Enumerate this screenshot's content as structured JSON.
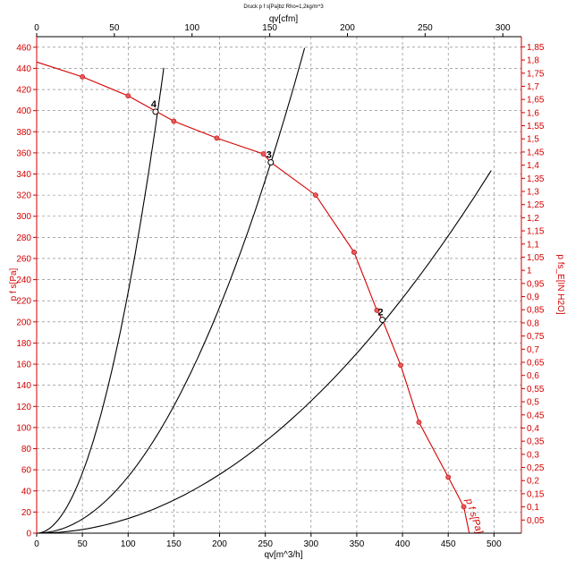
{
  "chart_data": {
    "type": "line",
    "title": "Druck p f s[Pa]bz Rho=1,2kg/m^3",
    "xlabel": "qv[m^3/h]",
    "xlabel_top": "qv[cfm]",
    "ylabel_left": "p f s[Pa]",
    "ylabel_right": "p fs_E[IN H2O]",
    "curve_label": "p f s[Pa]",
    "xlim": [
      0,
      530
    ],
    "ylim": [
      0,
      470
    ],
    "x_ticks": [
      0,
      50,
      100,
      150,
      200,
      250,
      300,
      350,
      400,
      450,
      500
    ],
    "x_top_ticks": [
      0,
      50,
      100,
      150,
      200,
      250,
      300
    ],
    "y_left_ticks": [
      0,
      20,
      40,
      60,
      80,
      100,
      120,
      140,
      160,
      180,
      200,
      220,
      240,
      260,
      280,
      300,
      320,
      340,
      360,
      380,
      400,
      420,
      440,
      460
    ],
    "y_right_ticks": [
      "0,05",
      "0,1",
      "0,15",
      "0,2",
      "0,25",
      "0,3",
      "0,35",
      "0,4",
      "0,45",
      "0,5",
      "0,55",
      "0,6",
      "0,65",
      "0,7",
      "0,75",
      "0,8",
      "0,85",
      "0,9",
      "0,95",
      "1",
      "1,05",
      "1,1",
      "1,15",
      "1,2",
      "1,25",
      "1,3",
      "1,35",
      "1,4",
      "1,45",
      "1,5",
      "1,55",
      "1,6",
      "1,65",
      "1,7",
      "1,75",
      "1,8",
      "1,85"
    ],
    "grid": true,
    "series": [
      {
        "name": "p f s[Pa]",
        "color": "#d40000",
        "x": [
          0,
          50,
          100,
          150,
          197,
          248,
          256,
          305,
          347,
          372,
          378,
          398,
          418,
          450,
          467,
          473
        ],
        "y": [
          446,
          432,
          414,
          390,
          374,
          359,
          351,
          320,
          266,
          211,
          202,
          159,
          105,
          53,
          25,
          0
        ]
      },
      {
        "type": "system",
        "k": 0.0228,
        "xmax": 139
      },
      {
        "type": "system",
        "k": 0.00535,
        "xmax": 293
      },
      {
        "type": "system",
        "k": 0.00139,
        "xmax": 497
      }
    ],
    "markers": [
      {
        "label": "4",
        "x": 130,
        "y": 399
      },
      {
        "label": "3",
        "x": 256,
        "y": 351
      },
      {
        "label": "2",
        "x": 378,
        "y": 202
      }
    ]
  }
}
